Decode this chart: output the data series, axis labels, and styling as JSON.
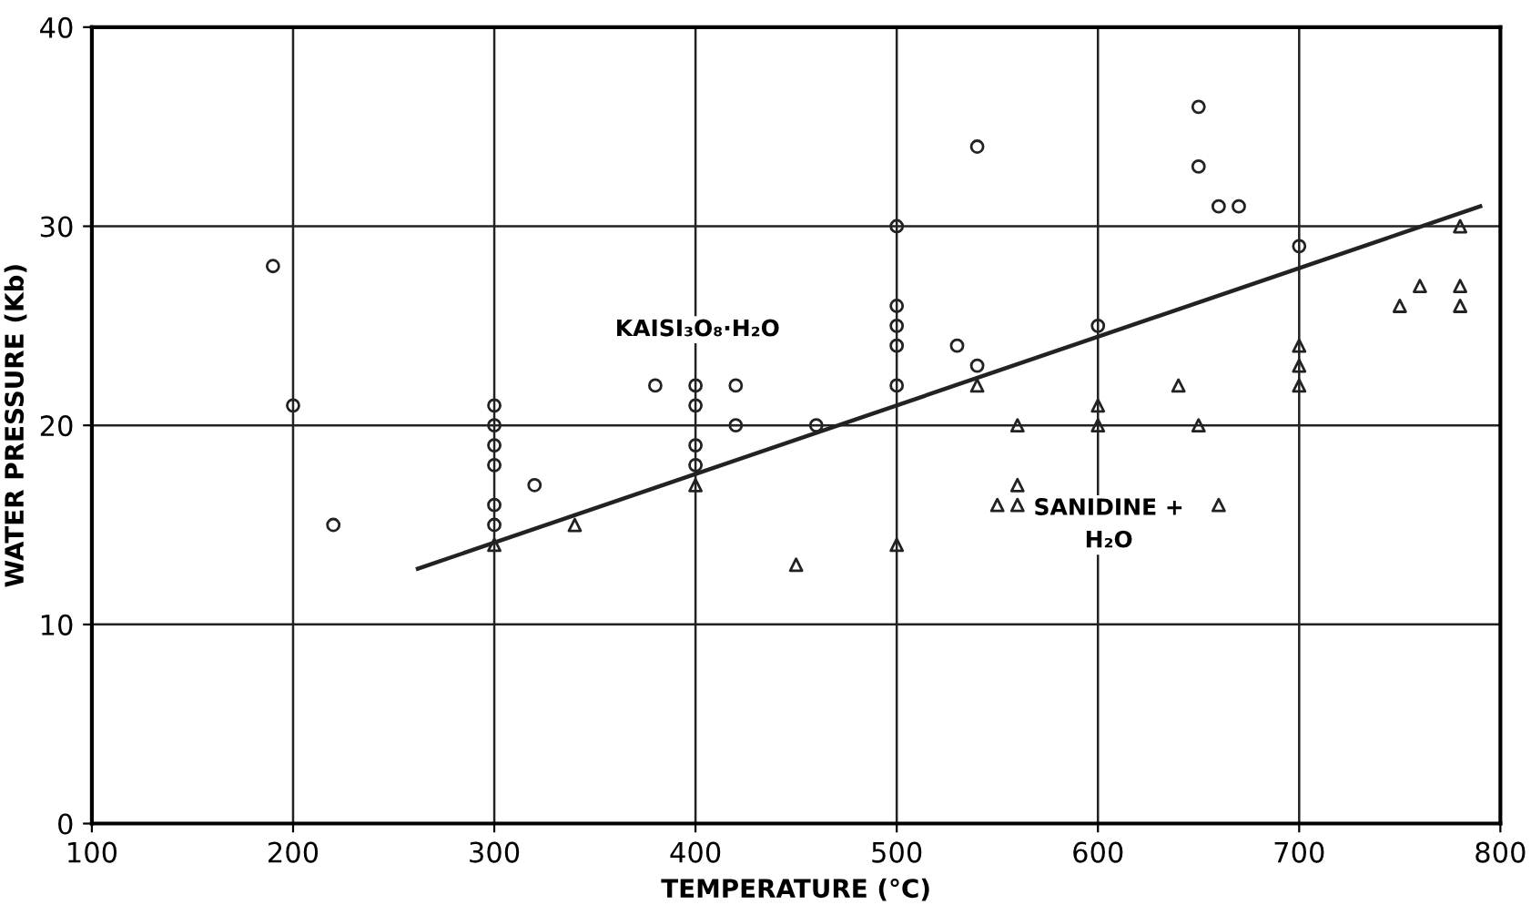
{
  "chart_data": {
    "type": "scatter",
    "xlabel": "TEMPERATURE (°C)",
    "ylabel": "WATER PRESSURE (Kb)",
    "xlim": [
      100,
      800
    ],
    "ylim": [
      0,
      40
    ],
    "xticks": [
      100,
      200,
      300,
      400,
      500,
      600,
      700,
      800
    ],
    "yticks": [
      0,
      10,
      20,
      30,
      40
    ],
    "grid": true,
    "series": [
      {
        "marker": "circle",
        "color": "#222222",
        "x": [
          190,
          200,
          220,
          300,
          300,
          300,
          300,
          300,
          300,
          320,
          380,
          400,
          400,
          400,
          400,
          420,
          420,
          460,
          500,
          500,
          500,
          500,
          500,
          530,
          540,
          540,
          600,
          650,
          650,
          660,
          670,
          700
        ],
        "values": [
          28,
          21,
          15,
          21,
          20,
          19,
          18,
          16,
          15,
          17,
          22,
          22,
          21,
          19,
          18,
          22,
          20,
          20,
          30,
          26,
          25,
          24,
          22,
          24,
          23,
          34,
          25,
          36,
          33,
          31,
          31,
          29
        ]
      },
      {
        "marker": "triangle",
        "color": "#222222",
        "x": [
          300,
          340,
          400,
          450,
          500,
          540,
          560,
          550,
          560,
          560,
          600,
          600,
          640,
          650,
          660,
          700,
          700,
          700,
          750,
          760,
          780,
          780,
          780
        ],
        "values": [
          14,
          15,
          17,
          13,
          14,
          22,
          20,
          16,
          16,
          17,
          21,
          20,
          22,
          20,
          16,
          24,
          23,
          22,
          26,
          27,
          30,
          27,
          26
        ]
      },
      {
        "type": "line",
        "marker": "none",
        "line_style": "solid",
        "color": "#222222",
        "x": [
          262,
          790
        ],
        "values": [
          12.8,
          31
        ]
      }
    ],
    "annotations": [
      "KAISI₃O₈·H₂O",
      "SANIDINE +\nH₂O"
    ]
  }
}
